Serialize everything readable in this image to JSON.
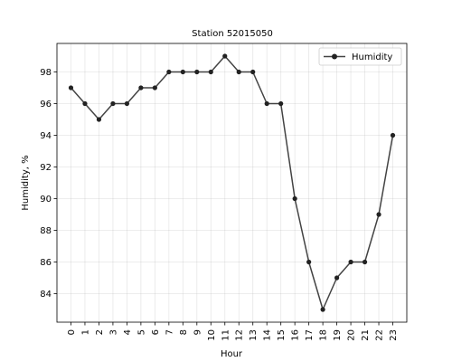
{
  "chart_data": {
    "type": "line",
    "title": "Station 52015050",
    "xlabel": "Hour",
    "ylabel": "Humidity, %",
    "x": [
      0,
      1,
      2,
      3,
      4,
      5,
      6,
      7,
      8,
      9,
      10,
      11,
      12,
      13,
      14,
      15,
      16,
      17,
      18,
      19,
      20,
      21,
      22,
      23
    ],
    "x_tick_labels": [
      "0",
      "1",
      "2",
      "3",
      "4",
      "5",
      "6",
      "7",
      "8",
      "9",
      "10",
      "11",
      "12",
      "13",
      "14",
      "15",
      "16",
      "17",
      "18",
      "19",
      "20",
      "21",
      "22",
      "23"
    ],
    "y_ticks": [
      84,
      86,
      88,
      90,
      92,
      94,
      96,
      98
    ],
    "y_tick_labels": [
      "84",
      "86",
      "88",
      "90",
      "92",
      "94",
      "96",
      "98"
    ],
    "xlim": [
      -1,
      24
    ],
    "ylim": [
      82.2,
      99.8
    ],
    "grid": true,
    "legend_position": "upper right",
    "series": [
      {
        "name": "Humidity",
        "color": "#222222",
        "values": [
          97,
          96,
          95,
          96,
          96,
          97,
          97,
          98,
          98,
          98,
          98,
          99,
          98,
          98,
          96,
          96,
          90,
          86,
          83,
          85,
          86,
          86,
          89,
          94
        ]
      }
    ]
  }
}
